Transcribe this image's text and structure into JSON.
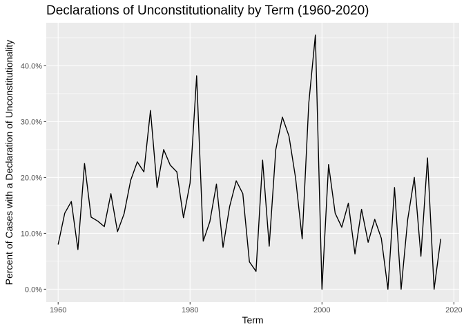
{
  "chart_data": {
    "type": "line",
    "title": "Declarations of Unconstitutionality by Term (1960-2020)",
    "xlabel": "Term",
    "ylabel": "Percent of Cases with a Declaration of Unconstitutionality",
    "xlim": [
      1958.2,
      2020.8
    ],
    "ylim": [
      -0.023,
      0.477
    ],
    "x_ticks": [
      1960,
      1980,
      2000,
      2020
    ],
    "x_tick_labels": [
      "1960",
      "1980",
      "2000",
      "2020"
    ],
    "y_ticks": [
      0,
      0.1,
      0.2,
      0.3,
      0.4
    ],
    "y_tick_labels": [
      "0.0%",
      "10.0%",
      "20.0%",
      "30.0%",
      "40.0%"
    ],
    "grid": true,
    "legend": "none",
    "colors": {
      "panel": "#ebebeb",
      "grid": "#ffffff",
      "line": "#000000",
      "tick": "#333333"
    },
    "series": [
      {
        "x": [
          1960,
          1961,
          1962,
          1963,
          1964,
          1965,
          1966,
          1967,
          1968,
          1969,
          1970,
          1971,
          1972,
          1973,
          1974,
          1975,
          1976,
          1977,
          1978,
          1979,
          1980,
          1981,
          1982,
          1983,
          1984,
          1985,
          1986,
          1987,
          1988,
          1989,
          1990,
          1991,
          1992,
          1993,
          1994,
          1995,
          1996,
          1997,
          1998,
          1999,
          2000,
          2001,
          2002,
          2003,
          2004,
          2005,
          2006,
          2007,
          2008,
          2009,
          2010,
          2011,
          2012,
          2013,
          2014,
          2015,
          2016,
          2017,
          2018
        ],
        "values": [
          0.08,
          0.136,
          0.157,
          0.071,
          0.225,
          0.129,
          0.122,
          0.112,
          0.171,
          0.103,
          0.135,
          0.195,
          0.228,
          0.21,
          0.32,
          0.182,
          0.25,
          0.222,
          0.21,
          0.128,
          0.19,
          0.382,
          0.086,
          0.121,
          0.188,
          0.075,
          0.148,
          0.194,
          0.171,
          0.049,
          0.032,
          0.231,
          0.077,
          0.25,
          0.308,
          0.274,
          0.199,
          0.09,
          0.333,
          0.455,
          0.0,
          0.223,
          0.136,
          0.111,
          0.154,
          0.063,
          0.143,
          0.084,
          0.125,
          0.091,
          0.0,
          0.182,
          0.0,
          0.125,
          0.2,
          0.059,
          0.235,
          0.0,
          0.09
        ]
      }
    ]
  }
}
